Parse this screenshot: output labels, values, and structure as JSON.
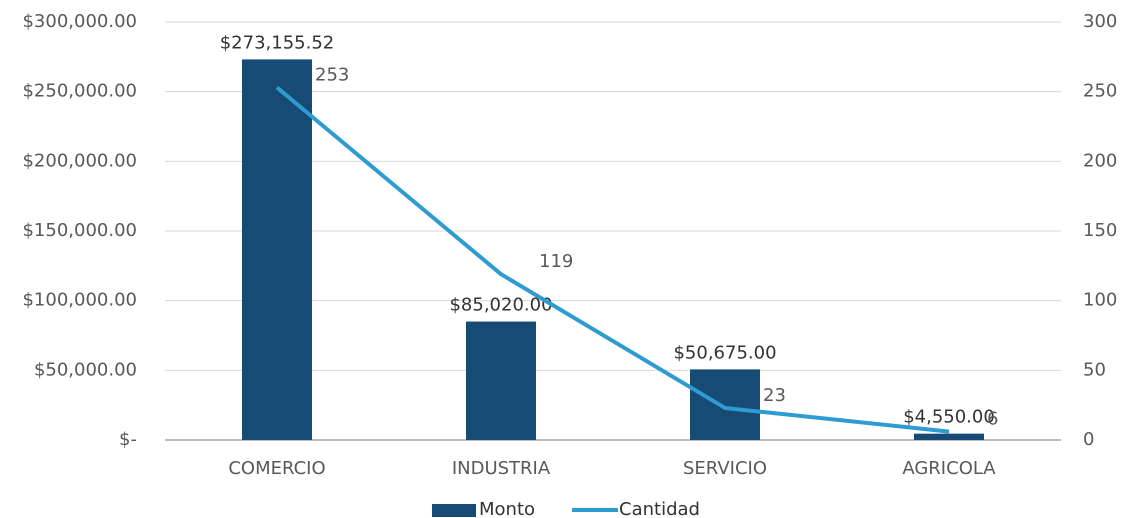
{
  "chart_data": {
    "type": "bar",
    "categories": [
      "COMERCIO",
      "INDUSTRIA",
      "SERVICIO",
      "AGRICOLA"
    ],
    "series": [
      {
        "name": "Monto",
        "color": "#174a75",
        "values": [
          273155.52,
          85020,
          50675,
          4550
        ],
        "value_labels": [
          "$273,155.52",
          "$85,020.00",
          "$50,675.00",
          "$4,550.00"
        ]
      },
      {
        "name": "Cantidad",
        "color": "#2e9bd1",
        "values": [
          253,
          119,
          23,
          6
        ],
        "axis": "y2"
      }
    ],
    "ylim": [
      0,
      300000
    ],
    "yticks": [
      {
        "value": 0,
        "label": "$-"
      },
      {
        "value": 50000,
        "label": "$50,000.00"
      },
      {
        "value": 100000,
        "label": "$100,000.00"
      },
      {
        "value": 150000,
        "label": "$150,000.00"
      },
      {
        "value": 200000,
        "label": "$200,000.00"
      },
      {
        "value": 250000,
        "label": "$250,000.00"
      },
      {
        "value": 300000,
        "label": "$300,000.00"
      }
    ],
    "y2lim": [
      0,
      300
    ],
    "y2ticks": [
      0,
      50,
      100,
      150,
      200,
      250,
      300
    ],
    "grid": true,
    "legend": "bottom"
  }
}
